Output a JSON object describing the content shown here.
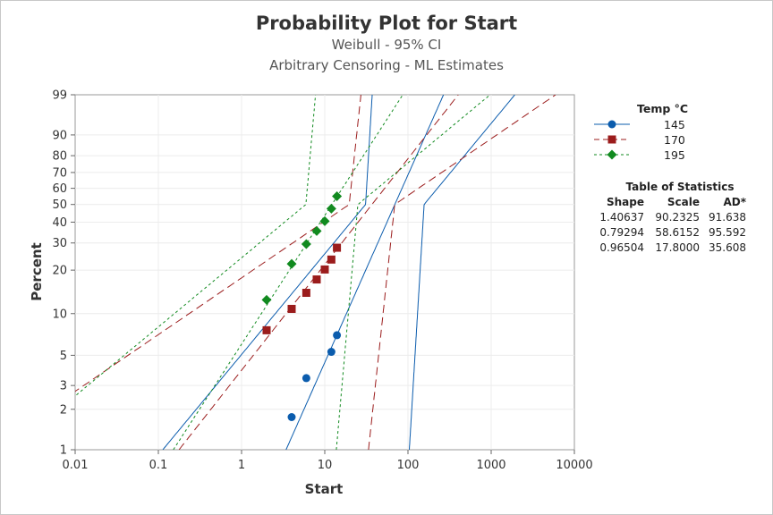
{
  "header": {
    "title": "Probability Plot for Start",
    "subtitle1": "Weibull - 95% CI",
    "subtitle2": "Arbitrary Censoring - ML Estimates"
  },
  "legend": {
    "title": "Temp °C",
    "items": [
      {
        "label": "145",
        "color": "#0b5cad",
        "marker": "circle",
        "dash": "solid"
      },
      {
        "label": "170",
        "color": "#9b1c1c",
        "marker": "square",
        "dash": "dashed"
      },
      {
        "label": "195",
        "color": "#118a1f",
        "marker": "diamond",
        "dash": "dotted"
      }
    ]
  },
  "stats_table": {
    "title": "Table of Statistics",
    "headers": [
      "Shape",
      "Scale",
      "AD*"
    ],
    "rows": [
      [
        "1.40637",
        "90.2325",
        "91.638"
      ],
      [
        "0.79294",
        "58.6152",
        "95.592"
      ],
      [
        "0.96504",
        "17.8000",
        "35.608"
      ]
    ]
  },
  "chart_data": {
    "type": "scatter",
    "title": "Probability Plot for Start",
    "xlabel": "Start",
    "ylabel": "Percent",
    "x_scale": "log",
    "y_scale": "weibull",
    "xlim": [
      0.01,
      10000
    ],
    "ylim": [
      1,
      99
    ],
    "x_ticks": [
      "0.01",
      "0.1",
      "1",
      "10",
      "100",
      "1000",
      "10000"
    ],
    "y_ticks": [
      "1",
      "2",
      "3",
      "5",
      "10",
      "20",
      "30",
      "40",
      "50",
      "60",
      "70",
      "80",
      "90",
      "99"
    ],
    "series": [
      {
        "name": "145",
        "x": [
          4,
          6,
          12,
          14
        ],
        "y": [
          1.75,
          3.4,
          5.3,
          7.0
        ]
      },
      {
        "name": "170",
        "x": [
          2,
          4,
          6,
          8,
          10,
          12,
          14
        ],
        "y": [
          7.6,
          10.8,
          14,
          17.3,
          20.2,
          23.5,
          28
        ]
      },
      {
        "name": "195",
        "x": [
          2,
          4,
          6,
          8,
          10,
          12,
          14
        ],
        "y": [
          12.5,
          22,
          29.5,
          35.5,
          40.5,
          47.5,
          55
        ]
      }
    ],
    "fits": [
      {
        "name": "145",
        "shape": 1.40637,
        "scale": 90.2325
      },
      {
        "name": "170",
        "shape": 0.79294,
        "scale": 58.6152
      },
      {
        "name": "195",
        "shape": 0.96504,
        "scale": 17.8
      }
    ]
  }
}
